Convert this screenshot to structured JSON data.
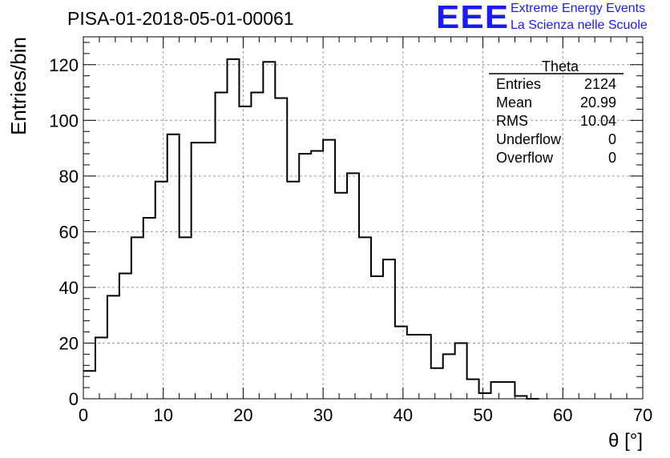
{
  "header": {
    "run_title": "PISA-01-2018-05-01-00061",
    "logo_text": "EEE",
    "logo_line1": "Extreme Energy Events",
    "logo_line2": "La Scienza nelle Scuole"
  },
  "stats_box": {
    "title": "Theta",
    "rows": [
      {
        "label": "Entries",
        "value": "2124"
      },
      {
        "label": "Mean",
        "value": "20.99"
      },
      {
        "label": "RMS",
        "value": "10.04"
      },
      {
        "label": "Underflow",
        "value": "0"
      },
      {
        "label": "Overflow",
        "value": "0"
      }
    ]
  },
  "chart_data": {
    "type": "bar",
    "style": "step-histogram",
    "title": "PISA-01-2018-05-01-00061",
    "xlabel": "θ [°]",
    "ylabel": "Entries/bin",
    "xlim": [
      0,
      70
    ],
    "ylim": [
      0,
      130
    ],
    "xticks": [
      0,
      10,
      20,
      30,
      40,
      50,
      60,
      70
    ],
    "yticks": [
      0,
      20,
      40,
      60,
      80,
      100,
      120
    ],
    "grid": true,
    "bin_width": 1.5,
    "bin_edges_start": 0,
    "values": [
      10,
      22,
      37,
      45,
      58,
      65,
      78,
      95,
      58,
      92,
      92,
      110,
      122,
      105,
      110,
      121,
      108,
      78,
      88,
      89,
      93,
      74,
      81,
      58,
      44,
      50,
      26,
      23,
      23,
      11,
      16,
      20,
      7,
      2,
      6,
      6,
      1,
      0
    ],
    "line_color": "#000000",
    "grid_color": "#9a9a9a"
  }
}
